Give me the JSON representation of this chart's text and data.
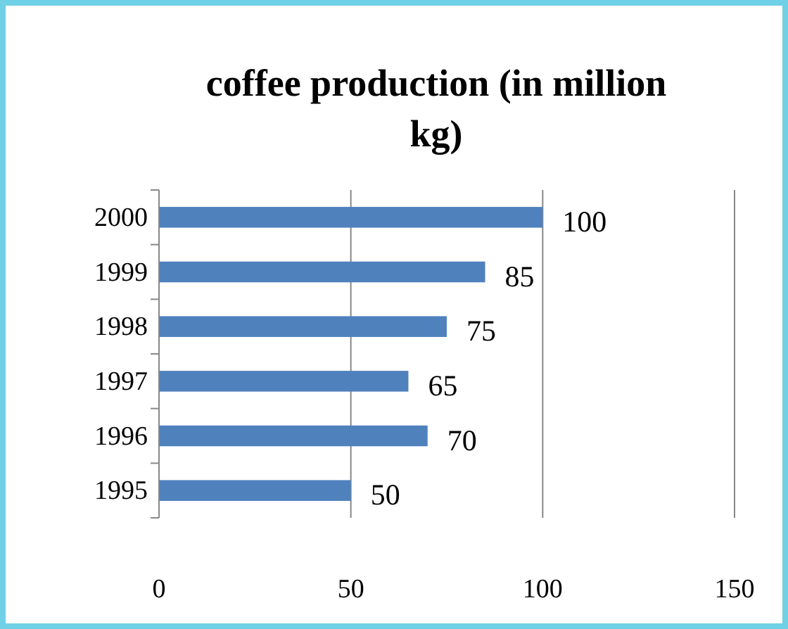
{
  "chart_data": {
    "type": "bar",
    "orientation": "horizontal",
    "title": "coffee production (in million kg)",
    "categories": [
      "2000",
      "1999",
      "1998",
      "1997",
      "1996",
      "1995"
    ],
    "values": [
      100,
      85,
      75,
      65,
      70,
      50
    ],
    "color": "#4f81bd",
    "xlim": [
      0,
      150
    ],
    "xticks": [
      0,
      50,
      100,
      150
    ],
    "grid": "x",
    "data_labels": true
  }
}
